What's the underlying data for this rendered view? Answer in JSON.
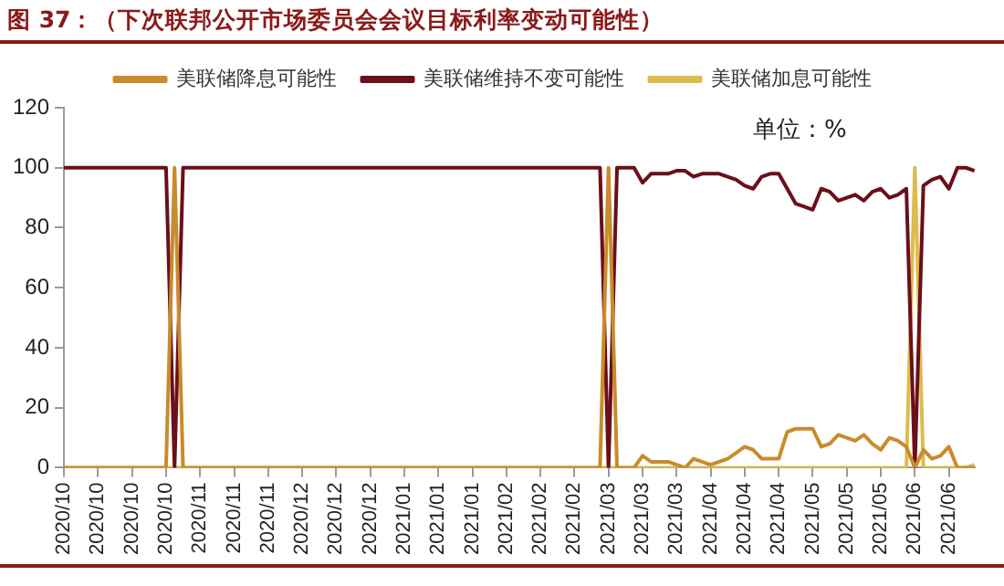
{
  "chart_data": {
    "type": "line",
    "title": "图 37：（下次联邦公开市场委员会会议目标利率变动可能性）",
    "categories": [
      "2020/10",
      null,
      null,
      null,
      "2020/10",
      null,
      null,
      null,
      "2020/10",
      null,
      null,
      null,
      "2020/10",
      null,
      null,
      null,
      "2020/11",
      null,
      null,
      null,
      "2020/11",
      null,
      null,
      null,
      "2020/11",
      null,
      null,
      null,
      "2020/12",
      null,
      null,
      null,
      "2020/12",
      null,
      null,
      null,
      "2020/12",
      null,
      null,
      null,
      "2021/01",
      null,
      null,
      null,
      "2021/01",
      null,
      null,
      null,
      "2021/01",
      null,
      null,
      null,
      "2021/02",
      null,
      null,
      null,
      "2021/02",
      null,
      null,
      null,
      "2021/02",
      null,
      null,
      null,
      "2021/03",
      null,
      null,
      null,
      "2021/03",
      null,
      null,
      null,
      "2021/03",
      null,
      null,
      null,
      "2021/04",
      null,
      null,
      null,
      "2021/04",
      null,
      null,
      null,
      "2021/04",
      null,
      null,
      null,
      "2021/05",
      null,
      null,
      null,
      "2021/05",
      null,
      null,
      null,
      "2021/05",
      null,
      null,
      null,
      "2021/06",
      null,
      null,
      null,
      "2021/06",
      null,
      null,
      null
    ],
    "series": [
      {
        "name": "美联储降息可能性",
        "color": "#c98b2b",
        "values": [
          0,
          0,
          0,
          0,
          0,
          0,
          0,
          0,
          0,
          0,
          0,
          0,
          0,
          100,
          0,
          0,
          0,
          0,
          0,
          0,
          0,
          0,
          0,
          0,
          0,
          0,
          0,
          0,
          0,
          0,
          0,
          0,
          0,
          0,
          0,
          0,
          0,
          0,
          0,
          0,
          0,
          0,
          0,
          0,
          0,
          0,
          0,
          0,
          0,
          0,
          0,
          0,
          0,
          0,
          0,
          0,
          0,
          0,
          0,
          0,
          0,
          0,
          0,
          0,
          100,
          0,
          0,
          0,
          4,
          2,
          2,
          2,
          1,
          0,
          3,
          2,
          1,
          2,
          3,
          5,
          7,
          6,
          3,
          3,
          3,
          12,
          13,
          13,
          13,
          7,
          8,
          11,
          10,
          9,
          11,
          8,
          6,
          10,
          9,
          7,
          0,
          6,
          3,
          4,
          7,
          0,
          0,
          0
        ]
      },
      {
        "name": "美联储维持不变可能性",
        "color": "#6b0f1a",
        "values": [
          100,
          100,
          100,
          100,
          100,
          100,
          100,
          100,
          100,
          100,
          100,
          100,
          100,
          0,
          100,
          100,
          100,
          100,
          100,
          100,
          100,
          100,
          100,
          100,
          100,
          100,
          100,
          100,
          100,
          100,
          100,
          100,
          100,
          100,
          100,
          100,
          100,
          100,
          100,
          100,
          100,
          100,
          100,
          100,
          100,
          100,
          100,
          100,
          100,
          100,
          100,
          100,
          100,
          100,
          100,
          100,
          100,
          100,
          100,
          100,
          100,
          100,
          100,
          100,
          0,
          100,
          100,
          100,
          95,
          98,
          98,
          98,
          99,
          99,
          97,
          98,
          98,
          98,
          97,
          96,
          94,
          93,
          97,
          98,
          98,
          93,
          88,
          87,
          86,
          93,
          92,
          89,
          90,
          91,
          89,
          92,
          93,
          90,
          91,
          93,
          0,
          94,
          96,
          97,
          93,
          100,
          100,
          99
        ]
      },
      {
        "name": "美联储加息可能性",
        "color": "#dcbc4c",
        "values": [
          0,
          0,
          0,
          0,
          0,
          0,
          0,
          0,
          0,
          0,
          0,
          0,
          0,
          0,
          0,
          0,
          0,
          0,
          0,
          0,
          0,
          0,
          0,
          0,
          0,
          0,
          0,
          0,
          0,
          0,
          0,
          0,
          0,
          0,
          0,
          0,
          0,
          0,
          0,
          0,
          0,
          0,
          0,
          0,
          0,
          0,
          0,
          0,
          0,
          0,
          0,
          0,
          0,
          0,
          0,
          0,
          0,
          0,
          0,
          0,
          0,
          0,
          0,
          0,
          0,
          0,
          0,
          0,
          0,
          0,
          0,
          0,
          0,
          0,
          0,
          0,
          0,
          0,
          0,
          0,
          0,
          0,
          0,
          0,
          0,
          0,
          0,
          0,
          0,
          0,
          0,
          0,
          0,
          0,
          0,
          0,
          0,
          0,
          0,
          0,
          100,
          0,
          0,
          0,
          0,
          0,
          0,
          1
        ]
      }
    ],
    "ylim": [
      0,
      120
    ],
    "yticks": [
      0,
      20,
      40,
      60,
      80,
      100,
      120
    ],
    "grid": false,
    "legend": "top",
    "marker": "none",
    "line_style": "solid",
    "annotations": [
      "单位：%"
    ]
  }
}
